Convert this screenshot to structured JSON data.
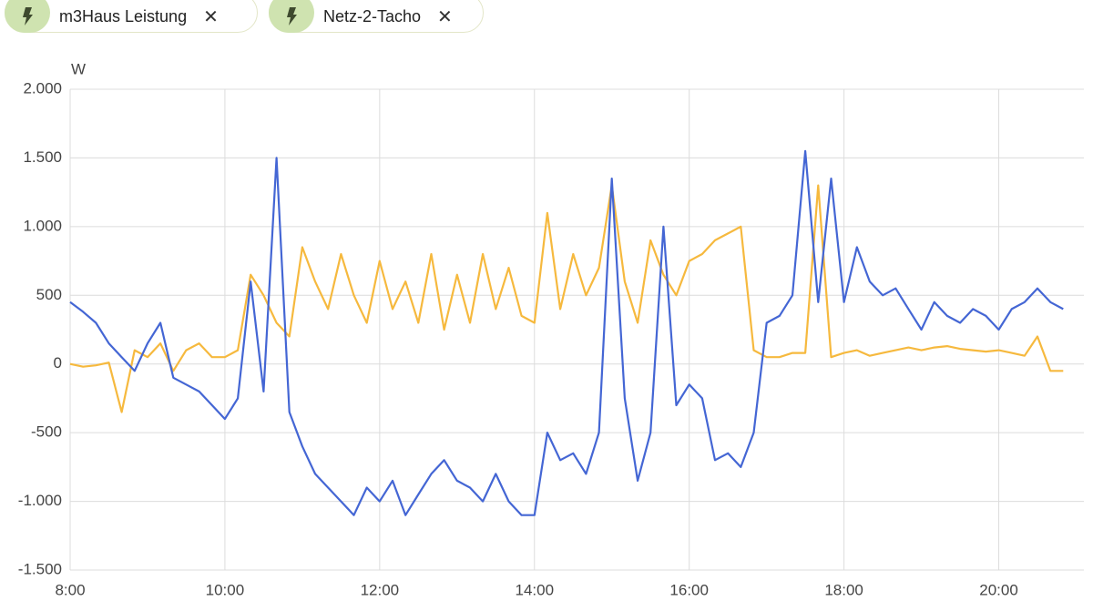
{
  "tabs": [
    {
      "label": "m3Haus Leistung"
    },
    {
      "label": "Netz-2-Tacho"
    }
  ],
  "chart_data": {
    "type": "line",
    "y_unit": "W",
    "x": [
      480,
      490,
      500,
      510,
      520,
      530,
      540,
      550,
      560,
      570,
      580,
      590,
      600,
      610,
      620,
      630,
      640,
      650,
      660,
      670,
      680,
      690,
      700,
      710,
      720,
      730,
      740,
      750,
      760,
      770,
      780,
      790,
      800,
      810,
      820,
      830,
      840,
      850,
      860,
      870,
      880,
      890,
      900,
      910,
      920,
      930,
      940,
      950,
      960,
      970,
      980,
      990,
      1000,
      1010,
      1020,
      1030,
      1040,
      1050,
      1060,
      1070,
      1080,
      1090,
      1100,
      1110,
      1120,
      1130,
      1140,
      1150,
      1160,
      1170,
      1180,
      1190,
      1200,
      1210,
      1220,
      1230,
      1240,
      1250
    ],
    "series": [
      {
        "name": "m3Haus Leistung",
        "color": "#4466d4",
        "values": [
          450,
          380,
          300,
          150,
          50,
          -50,
          150,
          300,
          -100,
          -150,
          -200,
          -300,
          -400,
          -250,
          600,
          -200,
          1500,
          -350,
          -600,
          -800,
          -900,
          -1000,
          -1100,
          -900,
          -1000,
          -850,
          -1100,
          -950,
          -800,
          -700,
          -850,
          -900,
          -1000,
          -800,
          -1000,
          -1100,
          -1100,
          -500,
          -700,
          -650,
          -800,
          -500,
          1350,
          -250,
          -850,
          -500,
          1000,
          -300,
          -150,
          -250,
          -700,
          -650,
          -750,
          -500,
          300,
          350,
          500,
          1550,
          450,
          1350,
          450,
          850,
          600,
          500,
          550,
          400,
          250,
          450,
          350,
          300,
          400,
          350,
          250,
          400,
          450,
          550,
          450,
          400
        ]
      },
      {
        "name": "Netz-2-Tacho",
        "color": "#f6b93e",
        "values": [
          0,
          -20,
          -10,
          10,
          -350,
          100,
          50,
          150,
          -50,
          100,
          150,
          50,
          50,
          100,
          650,
          500,
          300,
          200,
          850,
          600,
          400,
          800,
          500,
          300,
          750,
          400,
          600,
          300,
          800,
          250,
          650,
          300,
          800,
          400,
          700,
          350,
          300,
          1100,
          400,
          800,
          500,
          700,
          1300,
          600,
          300,
          900,
          650,
          500,
          750,
          800,
          900,
          950,
          1000,
          100,
          50,
          50,
          80,
          80,
          1300,
          50,
          80,
          100,
          60,
          80,
          100,
          120,
          100,
          120,
          130,
          110,
          100,
          90,
          100,
          80,
          60,
          200,
          -50,
          -50
        ]
      }
    ],
    "xlim": [
      480,
      1266
    ],
    "xticks": [
      {
        "value": 480,
        "label": "8:00"
      },
      {
        "value": 600,
        "label": "10:00"
      },
      {
        "value": 720,
        "label": "12:00"
      },
      {
        "value": 840,
        "label": "14:00"
      },
      {
        "value": 960,
        "label": "16:00"
      },
      {
        "value": 1080,
        "label": "18:00"
      },
      {
        "value": 1200,
        "label": "20:00"
      }
    ],
    "ylim": [
      -1500,
      2000
    ],
    "yticks": [
      {
        "value": -1500,
        "label": "-1.500"
      },
      {
        "value": -1000,
        "label": "-1.000"
      },
      -500,
      0,
      500,
      {
        "value": 1000,
        "label": "1.000"
      },
      {
        "value": 1500,
        "label": "1.500"
      },
      {
        "value": 2000,
        "label": "2.000"
      }
    ],
    "grid": true
  }
}
